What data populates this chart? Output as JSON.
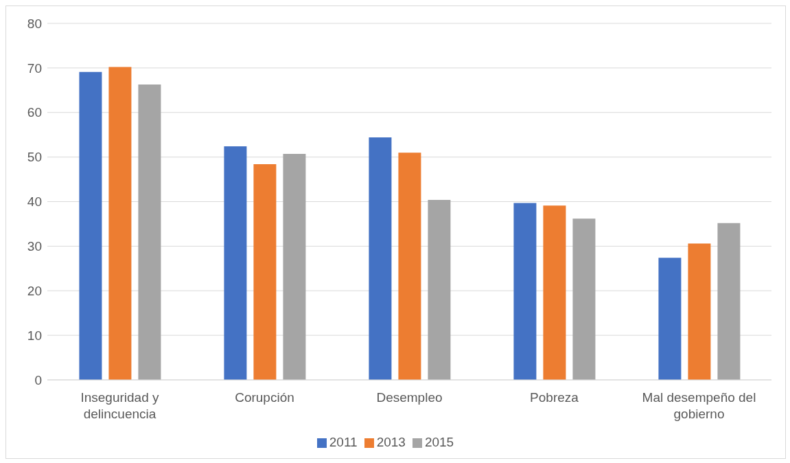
{
  "chart_data": {
    "type": "bar",
    "categories": [
      "Inseguridad y delincuencia",
      "Corupción",
      "Desempleo",
      "Pobreza",
      "Mal desempeño del gobierno"
    ],
    "series": [
      {
        "name": "2011",
        "color": "#4472c4",
        "values": [
          69.1,
          52.4,
          54.4,
          39.7,
          27.4
        ]
      },
      {
        "name": "2013",
        "color": "#ed7d31",
        "values": [
          70.2,
          48.4,
          51.0,
          39.1,
          30.6
        ]
      },
      {
        "name": "2015",
        "color": "#a5a5a5",
        "values": [
          66.3,
          50.7,
          40.4,
          36.2,
          35.2
        ]
      }
    ],
    "ylim": [
      0,
      80
    ],
    "yticks": [
      0,
      10,
      20,
      30,
      40,
      50,
      60,
      70,
      80
    ],
    "grid": "y",
    "legend": "bottom"
  }
}
